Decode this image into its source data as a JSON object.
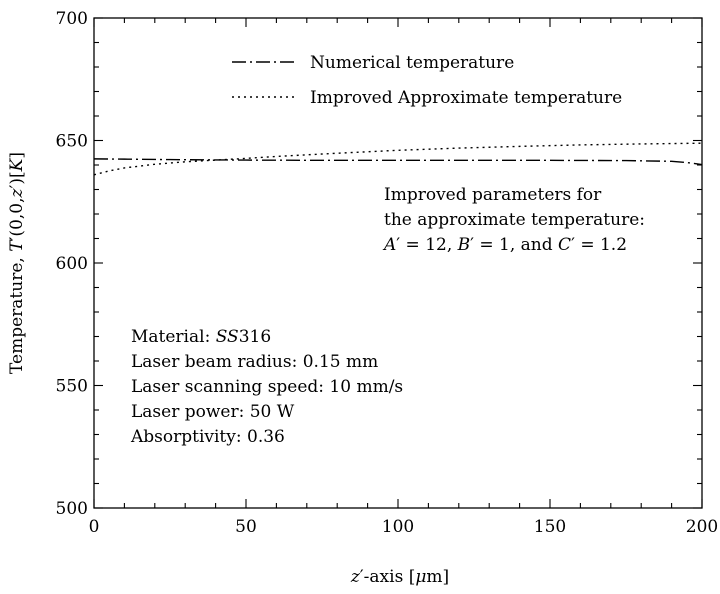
{
  "chart_data": {
    "type": "line",
    "xlabel_parts": [
      "z",
      "′",
      "-axis [",
      "μ",
      "m]"
    ],
    "ylabel_parts": [
      "Temperature, ",
      "T",
      "′",
      "(0,0,",
      "z",
      "′",
      ")[",
      "K",
      "]"
    ],
    "xlim": [
      0,
      200
    ],
    "ylim": [
      500,
      700
    ],
    "x_ticks": [
      "0",
      "50",
      "100",
      "150",
      "200"
    ],
    "y_ticks": [
      "500",
      "550",
      "600",
      "650",
      "700"
    ],
    "grid": false,
    "legend_position": "top-center",
    "series": [
      {
        "name": "Numerical temperature",
        "dash": "dashdot",
        "x": [
          0,
          10,
          25,
          50,
          75,
          100,
          125,
          150,
          175,
          190,
          195,
          200
        ],
        "y": [
          642.5,
          642.4,
          642.2,
          642.0,
          641.9,
          641.9,
          641.9,
          641.9,
          641.8,
          641.5,
          641.0,
          640.2
        ]
      },
      {
        "name": "Improved Approximate temperature",
        "dash": "dotted",
        "x": [
          0,
          5,
          10,
          20,
          30,
          40,
          50,
          60,
          80,
          100,
          120,
          140,
          160,
          180,
          200
        ],
        "y": [
          636.0,
          637.6,
          638.8,
          640.3,
          641.3,
          642.0,
          642.7,
          643.5,
          644.8,
          646.0,
          646.9,
          647.6,
          648.2,
          648.6,
          648.9
        ]
      }
    ],
    "annotation_params": {
      "line1": "Improved parameters for",
      "line2": "the approximate temperature:",
      "a_sym": "A",
      "a_val": "′ = 12, ",
      "b_sym": "B",
      "b_val": "′ = 1, and ",
      "c_sym": "C",
      "c_val": "′ = 1.2"
    },
    "annotation_material": {
      "material_label": "Material: ",
      "material_value": "SS",
      "material_suffix": "316",
      "lines": [
        "Laser beam radius: 0.15 mm",
        "Laser scanning speed: 10 mm/s",
        "Laser power: 50 W",
        "Absorptivity: 0.36"
      ]
    }
  }
}
